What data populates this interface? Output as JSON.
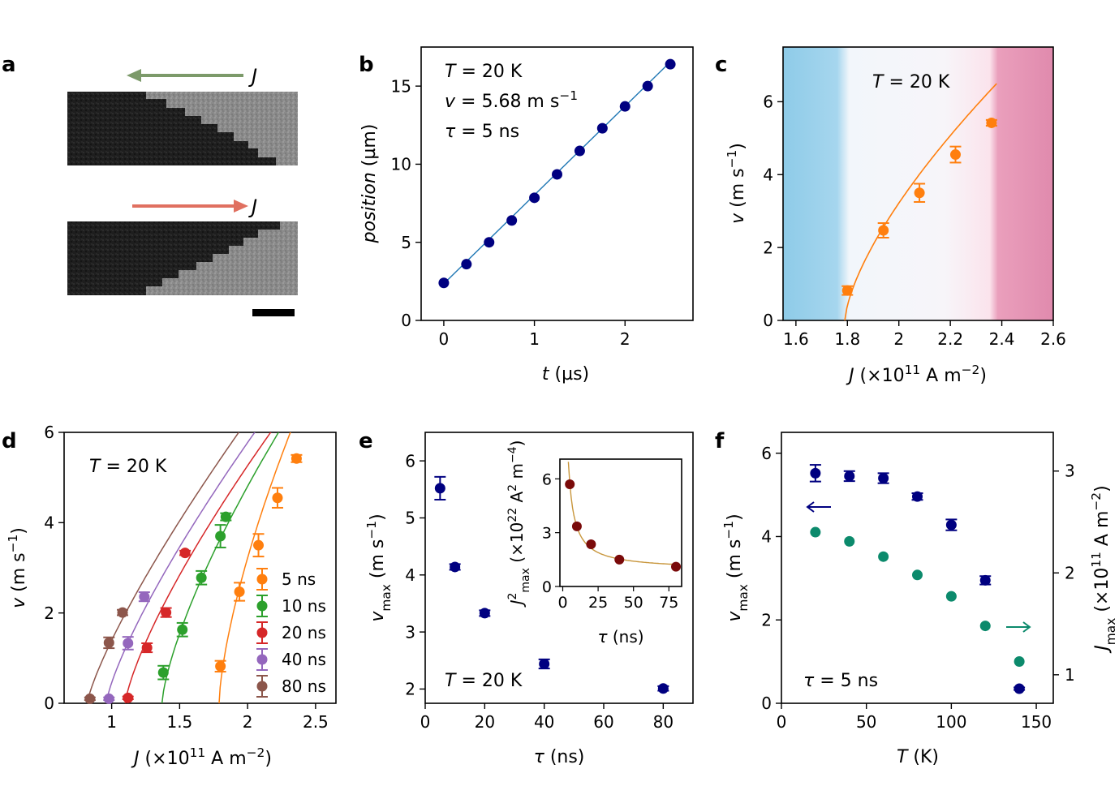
{
  "panels": {
    "a": "a",
    "b": "b",
    "c": "c",
    "d": "d",
    "e": "e",
    "f": "f"
  },
  "colors": {
    "navy": "#000080",
    "orange": "#ff7f0e",
    "green": "#2ca02c",
    "red": "#d62728",
    "purple": "#9467bd",
    "brown": "#8c564b",
    "teal": "#0c8a6c",
    "darkred": "#7a0a0a",
    "fit_blue": "#1f77b4",
    "arrow_left": "#7c9a6a",
    "arrow_right": "#e07060"
  },
  "panel_a": {
    "j_top": "J",
    "j_bottom": "J"
  },
  "chart_data": [
    {
      "panel": "b",
      "type": "scatter",
      "xlabel": "t (µs)",
      "ylabel": "position (µm)",
      "xlim": [
        -0.25,
        2.75
      ],
      "ylim": [
        0,
        17.5
      ],
      "xticks": [
        0,
        1,
        2
      ],
      "yticks": [
        0,
        5,
        10,
        15
      ],
      "annotations": [
        "T = 20 K",
        "v = 5.68 m s⁻¹",
        "τ = 5 ns"
      ],
      "x": [
        0,
        0.25,
        0.5,
        0.75,
        1.0,
        1.25,
        1.5,
        1.75,
        2.0,
        2.25,
        2.5
      ],
      "y": [
        2.4,
        3.6,
        5.0,
        6.4,
        7.85,
        9.35,
        10.85,
        12.3,
        13.7,
        15.0,
        16.4
      ],
      "fit": {
        "slope": 5.68,
        "intercept": 2.35,
        "x": [
          0,
          2.5
        ]
      }
    },
    {
      "panel": "c",
      "type": "scatter",
      "xlabel": "J (×10¹¹ A m⁻²)",
      "ylabel": "v (m s⁻¹)",
      "xlim": [
        1.55,
        2.6
      ],
      "ylim": [
        0,
        7.5
      ],
      "xticks": [
        1.6,
        1.8,
        2.0,
        2.2,
        2.4,
        2.6
      ],
      "yticks": [
        0,
        2,
        4,
        6
      ],
      "annotations": [
        "T = 20 K"
      ],
      "x": [
        1.8,
        1.94,
        2.08,
        2.22,
        2.36
      ],
      "y": [
        0.82,
        2.47,
        3.5,
        4.55,
        5.42
      ],
      "yerr": [
        0.12,
        0.2,
        0.25,
        0.22,
        0.08
      ],
      "fit": {
        "j0": 1.79,
        "A": 9.3,
        "n": 0.68,
        "xmax": 2.38
      },
      "background": {
        "blue_end": 1.8,
        "pink_start": 2.38
      }
    },
    {
      "panel": "d",
      "type": "scatter",
      "xlabel": "J (×10¹¹ A m⁻²)",
      "ylabel": "v (m s⁻¹)",
      "xlim": [
        0.65,
        2.65
      ],
      "ylim": [
        0,
        6
      ],
      "xticks": [
        1.0,
        1.5,
        2.0,
        2.5
      ],
      "yticks": [
        0,
        2,
        4,
        6
      ],
      "annotations": [
        "T = 20 K"
      ],
      "legend": "lower right",
      "series": [
        {
          "name": "5 ns",
          "color": "orange",
          "j0": 1.79,
          "A": 9.3,
          "n": 0.68,
          "xmax": 2.45,
          "x": [
            1.8,
            1.94,
            2.08,
            2.22,
            2.36
          ],
          "y": [
            0.82,
            2.47,
            3.5,
            4.55,
            5.42
          ],
          "yerr": [
            0.12,
            0.2,
            0.25,
            0.22,
            0.08
          ]
        },
        {
          "name": "10 ns",
          "color": "green",
          "j0": 1.37,
          "A": 6.7,
          "n": 0.72,
          "xmax": 2.28,
          "x": [
            1.38,
            1.52,
            1.66,
            1.8,
            1.84
          ],
          "y": [
            0.68,
            1.63,
            2.78,
            3.7,
            4.13
          ],
          "yerr": [
            0.15,
            0.15,
            0.15,
            0.25,
            0.08
          ]
        },
        {
          "name": "20 ns",
          "color": "red",
          "j0": 1.1,
          "A": 5.7,
          "n": 0.76,
          "xmax": 2.23,
          "x": [
            1.12,
            1.26,
            1.4,
            1.54
          ],
          "y": [
            0.12,
            1.23,
            2.01,
            3.33
          ],
          "yerr": [
            0.03,
            0.1,
            0.1,
            0.05
          ]
        },
        {
          "name": "40 ns",
          "color": "purple",
          "j0": 0.96,
          "A": 5.6,
          "n": 0.78,
          "xmax": 2.18,
          "x": [
            0.98,
            1.12,
            1.24
          ],
          "y": [
            0.1,
            1.33,
            2.36
          ],
          "yerr": [
            0.03,
            0.14,
            0.1
          ]
        },
        {
          "name": "80 ns",
          "color": "brown",
          "j0": 0.82,
          "A": 5.5,
          "n": 0.8,
          "xmax": 2.14,
          "x": [
            0.84,
            0.98,
            1.08
          ],
          "y": [
            0.1,
            1.34,
            2.01
          ],
          "yerr": [
            0.03,
            0.12,
            0.06
          ]
        }
      ]
    },
    {
      "panel": "e",
      "type": "scatter",
      "xlabel": "τ (ns)",
      "ylabel": "v_max (m s⁻¹)",
      "xlim": [
        0,
        90
      ],
      "ylim": [
        1.75,
        6.5
      ],
      "xticks": [
        0,
        20,
        40,
        60,
        80
      ],
      "yticks": [
        2,
        3,
        4,
        5,
        6
      ],
      "annotations": [
        "T = 20 K"
      ],
      "x": [
        5,
        10,
        20,
        40,
        80
      ],
      "y": [
        5.52,
        4.14,
        3.33,
        2.44,
        2.01
      ],
      "yerr": [
        0.2,
        0.05,
        0.05,
        0.08,
        0.04
      ],
      "inset": {
        "xlabel": "τ (ns)",
        "ylabel": "J²_max (×10²² A² m⁻⁴)",
        "xlim": [
          -2,
          84
        ],
        "ylim": [
          0,
          7.1
        ],
        "xticks": [
          0,
          25,
          50,
          75
        ],
        "yticks": [
          0,
          3,
          6
        ],
        "x": [
          5,
          10,
          20,
          40,
          80
        ],
        "y": [
          5.7,
          3.35,
          2.35,
          1.5,
          1.1
        ],
        "fit": {
          "a": 0.93,
          "b": 24,
          "x": [
            3,
            82
          ]
        }
      }
    },
    {
      "panel": "f",
      "type": "scatter",
      "xlabel": "T (K)",
      "ylabel": "v_max (m s⁻¹)",
      "ylabel_right": "J_max (×10¹¹ A m⁻²)",
      "xlim": [
        0,
        160
      ],
      "ylim": [
        0,
        6.5
      ],
      "ylim_right": [
        0.72,
        3.38
      ],
      "xticks": [
        0,
        50,
        100,
        150
      ],
      "yticks": [
        0,
        2,
        4,
        6
      ],
      "yticks_right": [
        1,
        2,
        3
      ],
      "annotations": [
        "τ = 5 ns"
      ],
      "series": [
        {
          "name": "v_max",
          "axis": "left",
          "color": "navy",
          "x": [
            20,
            40,
            60,
            80,
            100,
            120,
            140
          ],
          "y": [
            5.52,
            5.45,
            5.4,
            4.96,
            4.28,
            2.95,
            0.35
          ],
          "yerr": [
            0.2,
            0.12,
            0.12,
            0.08,
            0.13,
            0.1,
            0.03
          ]
        },
        {
          "name": "J_max",
          "axis": "right",
          "color": "teal",
          "x": [
            20,
            40,
            60,
            80,
            100,
            120,
            140
          ],
          "y": [
            2.4,
            2.31,
            2.16,
            1.98,
            1.77,
            1.48,
            1.13
          ]
        }
      ]
    }
  ]
}
